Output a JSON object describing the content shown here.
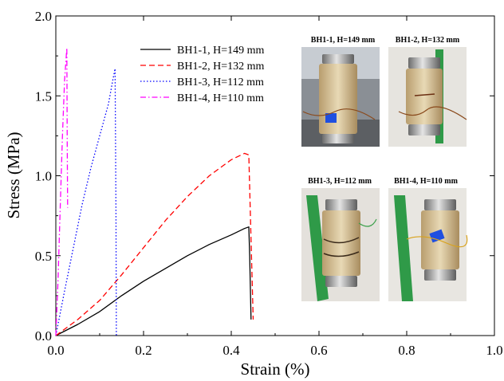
{
  "chart_data": {
    "type": "line",
    "xlabel": "Strain (%)",
    "ylabel": "Stress (MPa)",
    "xlim": [
      0.0,
      1.0
    ],
    "ylim": [
      0.0,
      2.0
    ],
    "x_ticks": [
      "0.0",
      "0.2",
      "0.4",
      "0.6",
      "0.8",
      "1.0"
    ],
    "y_ticks": [
      "0.0",
      "0.5",
      "1.0",
      "1.5",
      "2.0"
    ],
    "grid": false,
    "legend_position": "upper-middle",
    "series": [
      {
        "name": "BH1-1, H=149 mm",
        "color": "#000000",
        "dash": "solid",
        "points": [
          [
            0.0,
            0.0
          ],
          [
            0.05,
            0.07
          ],
          [
            0.1,
            0.15
          ],
          [
            0.15,
            0.25
          ],
          [
            0.2,
            0.34
          ],
          [
            0.25,
            0.42
          ],
          [
            0.3,
            0.5
          ],
          [
            0.35,
            0.57
          ],
          [
            0.4,
            0.63
          ],
          [
            0.43,
            0.67
          ],
          [
            0.44,
            0.68
          ],
          [
            0.442,
            0.5
          ],
          [
            0.445,
            0.1
          ]
        ]
      },
      {
        "name": "BH1-2, H=132 mm",
        "color": "#ff0000",
        "dash": "dashed",
        "points": [
          [
            0.0,
            0.0
          ],
          [
            0.05,
            0.1
          ],
          [
            0.1,
            0.22
          ],
          [
            0.15,
            0.38
          ],
          [
            0.2,
            0.55
          ],
          [
            0.25,
            0.72
          ],
          [
            0.3,
            0.87
          ],
          [
            0.35,
            1.0
          ],
          [
            0.4,
            1.1
          ],
          [
            0.43,
            1.14
          ],
          [
            0.44,
            1.13
          ],
          [
            0.445,
            0.6
          ],
          [
            0.45,
            0.1
          ]
        ]
      },
      {
        "name": "BH1-3, H=112 mm",
        "color": "#0000ff",
        "dash": "dotted",
        "points": [
          [
            0.0,
            0.0
          ],
          [
            0.02,
            0.28
          ],
          [
            0.04,
            0.55
          ],
          [
            0.06,
            0.82
          ],
          [
            0.08,
            1.05
          ],
          [
            0.1,
            1.25
          ],
          [
            0.12,
            1.45
          ],
          [
            0.13,
            1.6
          ],
          [
            0.135,
            1.67
          ],
          [
            0.137,
            0.8
          ],
          [
            0.138,
            0.0
          ]
        ]
      },
      {
        "name": "BH1-4, H=110 mm",
        "color": "#ff00ff",
        "dash": "dashdot",
        "points": [
          [
            0.0,
            0.0
          ],
          [
            0.005,
            0.35
          ],
          [
            0.01,
            0.8
          ],
          [
            0.015,
            1.25
          ],
          [
            0.02,
            1.6
          ],
          [
            0.025,
            1.8
          ],
          [
            0.026,
            1.2
          ],
          [
            0.027,
            0.8
          ]
        ]
      }
    ],
    "photos": [
      {
        "title": "BH1-1, H=149 mm"
      },
      {
        "title": "BH1-2, H=132 mm"
      },
      {
        "title": "BH1-3, H=112 mm"
      },
      {
        "title": "BH1-4, H=110 mm"
      }
    ]
  }
}
